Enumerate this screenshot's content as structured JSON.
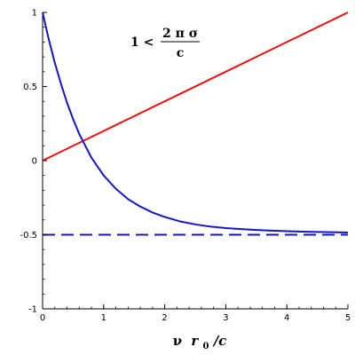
{
  "chart_data": {
    "type": "line",
    "xlabel_parts": {
      "nu": "ν",
      "r": "r",
      "sub": "0",
      "slash_c": "/c"
    },
    "ylabel": "",
    "xlim": [
      0,
      5
    ],
    "ylim": [
      -1,
      1
    ],
    "x_ticks": [
      0,
      1,
      2,
      3,
      4,
      5
    ],
    "x_tick_labels": [
      "0",
      "1",
      "2",
      "3",
      "4",
      "5"
    ],
    "y_ticks": [
      -1,
      -0.5,
      0,
      0.5,
      1
    ],
    "y_tick_labels": [
      "-1",
      "-0.5",
      "0",
      "0.5",
      "1"
    ],
    "grid": false,
    "annotation": {
      "lhs": "1 <",
      "numerator": "2 π σ",
      "denominator": "c"
    },
    "series": [
      {
        "color": "#e8120c",
        "style": "solid",
        "x": [
          0,
          1,
          2,
          3,
          4,
          5
        ],
        "y": [
          0,
          0.2,
          0.4,
          0.6,
          0.8,
          1.0
        ]
      },
      {
        "color": "#1414c8",
        "style": "solid",
        "x": [
          0,
          0.1,
          0.2,
          0.3,
          0.4,
          0.5,
          0.6,
          0.7,
          0.8,
          0.9,
          1.0,
          1.2,
          1.4,
          1.6,
          1.8,
          2.0,
          2.25,
          2.5,
          2.75,
          3.0,
          3.25,
          3.5,
          3.75,
          4.0,
          4.25,
          4.5,
          4.75,
          5.0
        ],
        "y": [
          1.0,
          0.82,
          0.66,
          0.52,
          0.39,
          0.28,
          0.18,
          0.1,
          0.02,
          -0.04,
          -0.1,
          -0.19,
          -0.26,
          -0.31,
          -0.35,
          -0.38,
          -0.41,
          -0.43,
          -0.445,
          -0.455,
          -0.462,
          -0.468,
          -0.472,
          -0.476,
          -0.479,
          -0.481,
          -0.483,
          -0.485
        ]
      },
      {
        "color": "#1414c8",
        "style": "dashed",
        "x": [
          0,
          5
        ],
        "y": [
          -0.5,
          -0.5
        ]
      }
    ]
  }
}
